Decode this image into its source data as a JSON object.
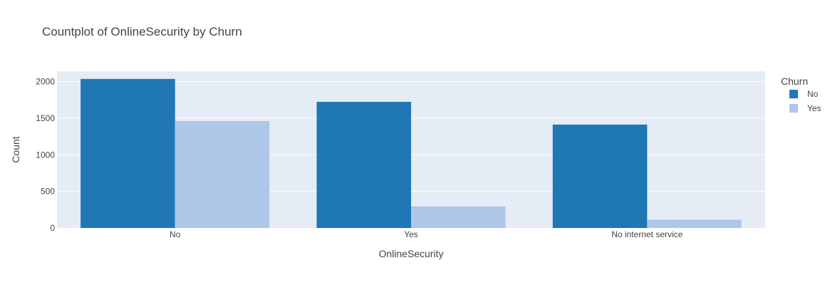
{
  "chart_data": {
    "type": "bar",
    "title": "Countplot of OnlineSecurity by Churn",
    "xlabel": "OnlineSecurity",
    "ylabel": "Count",
    "categories": [
      "No",
      "Yes",
      "No internet service"
    ],
    "series": [
      {
        "name": "No",
        "values": [
          2037,
          1724,
          1413
        ],
        "color": "#1f77b4"
      },
      {
        "name": "Yes",
        "values": [
          1461,
          295,
          113
        ],
        "color": "#aec7e8"
      }
    ],
    "ylim": [
      0,
      2142
    ],
    "yticks": [
      0,
      500,
      1000,
      1500,
      2000
    ],
    "grid": true,
    "legend": {
      "title": "Churn",
      "placement": "right"
    },
    "colors": {
      "plot_bg": "#e5ecf6",
      "grid": "#ffffff",
      "text": "#444444"
    }
  }
}
